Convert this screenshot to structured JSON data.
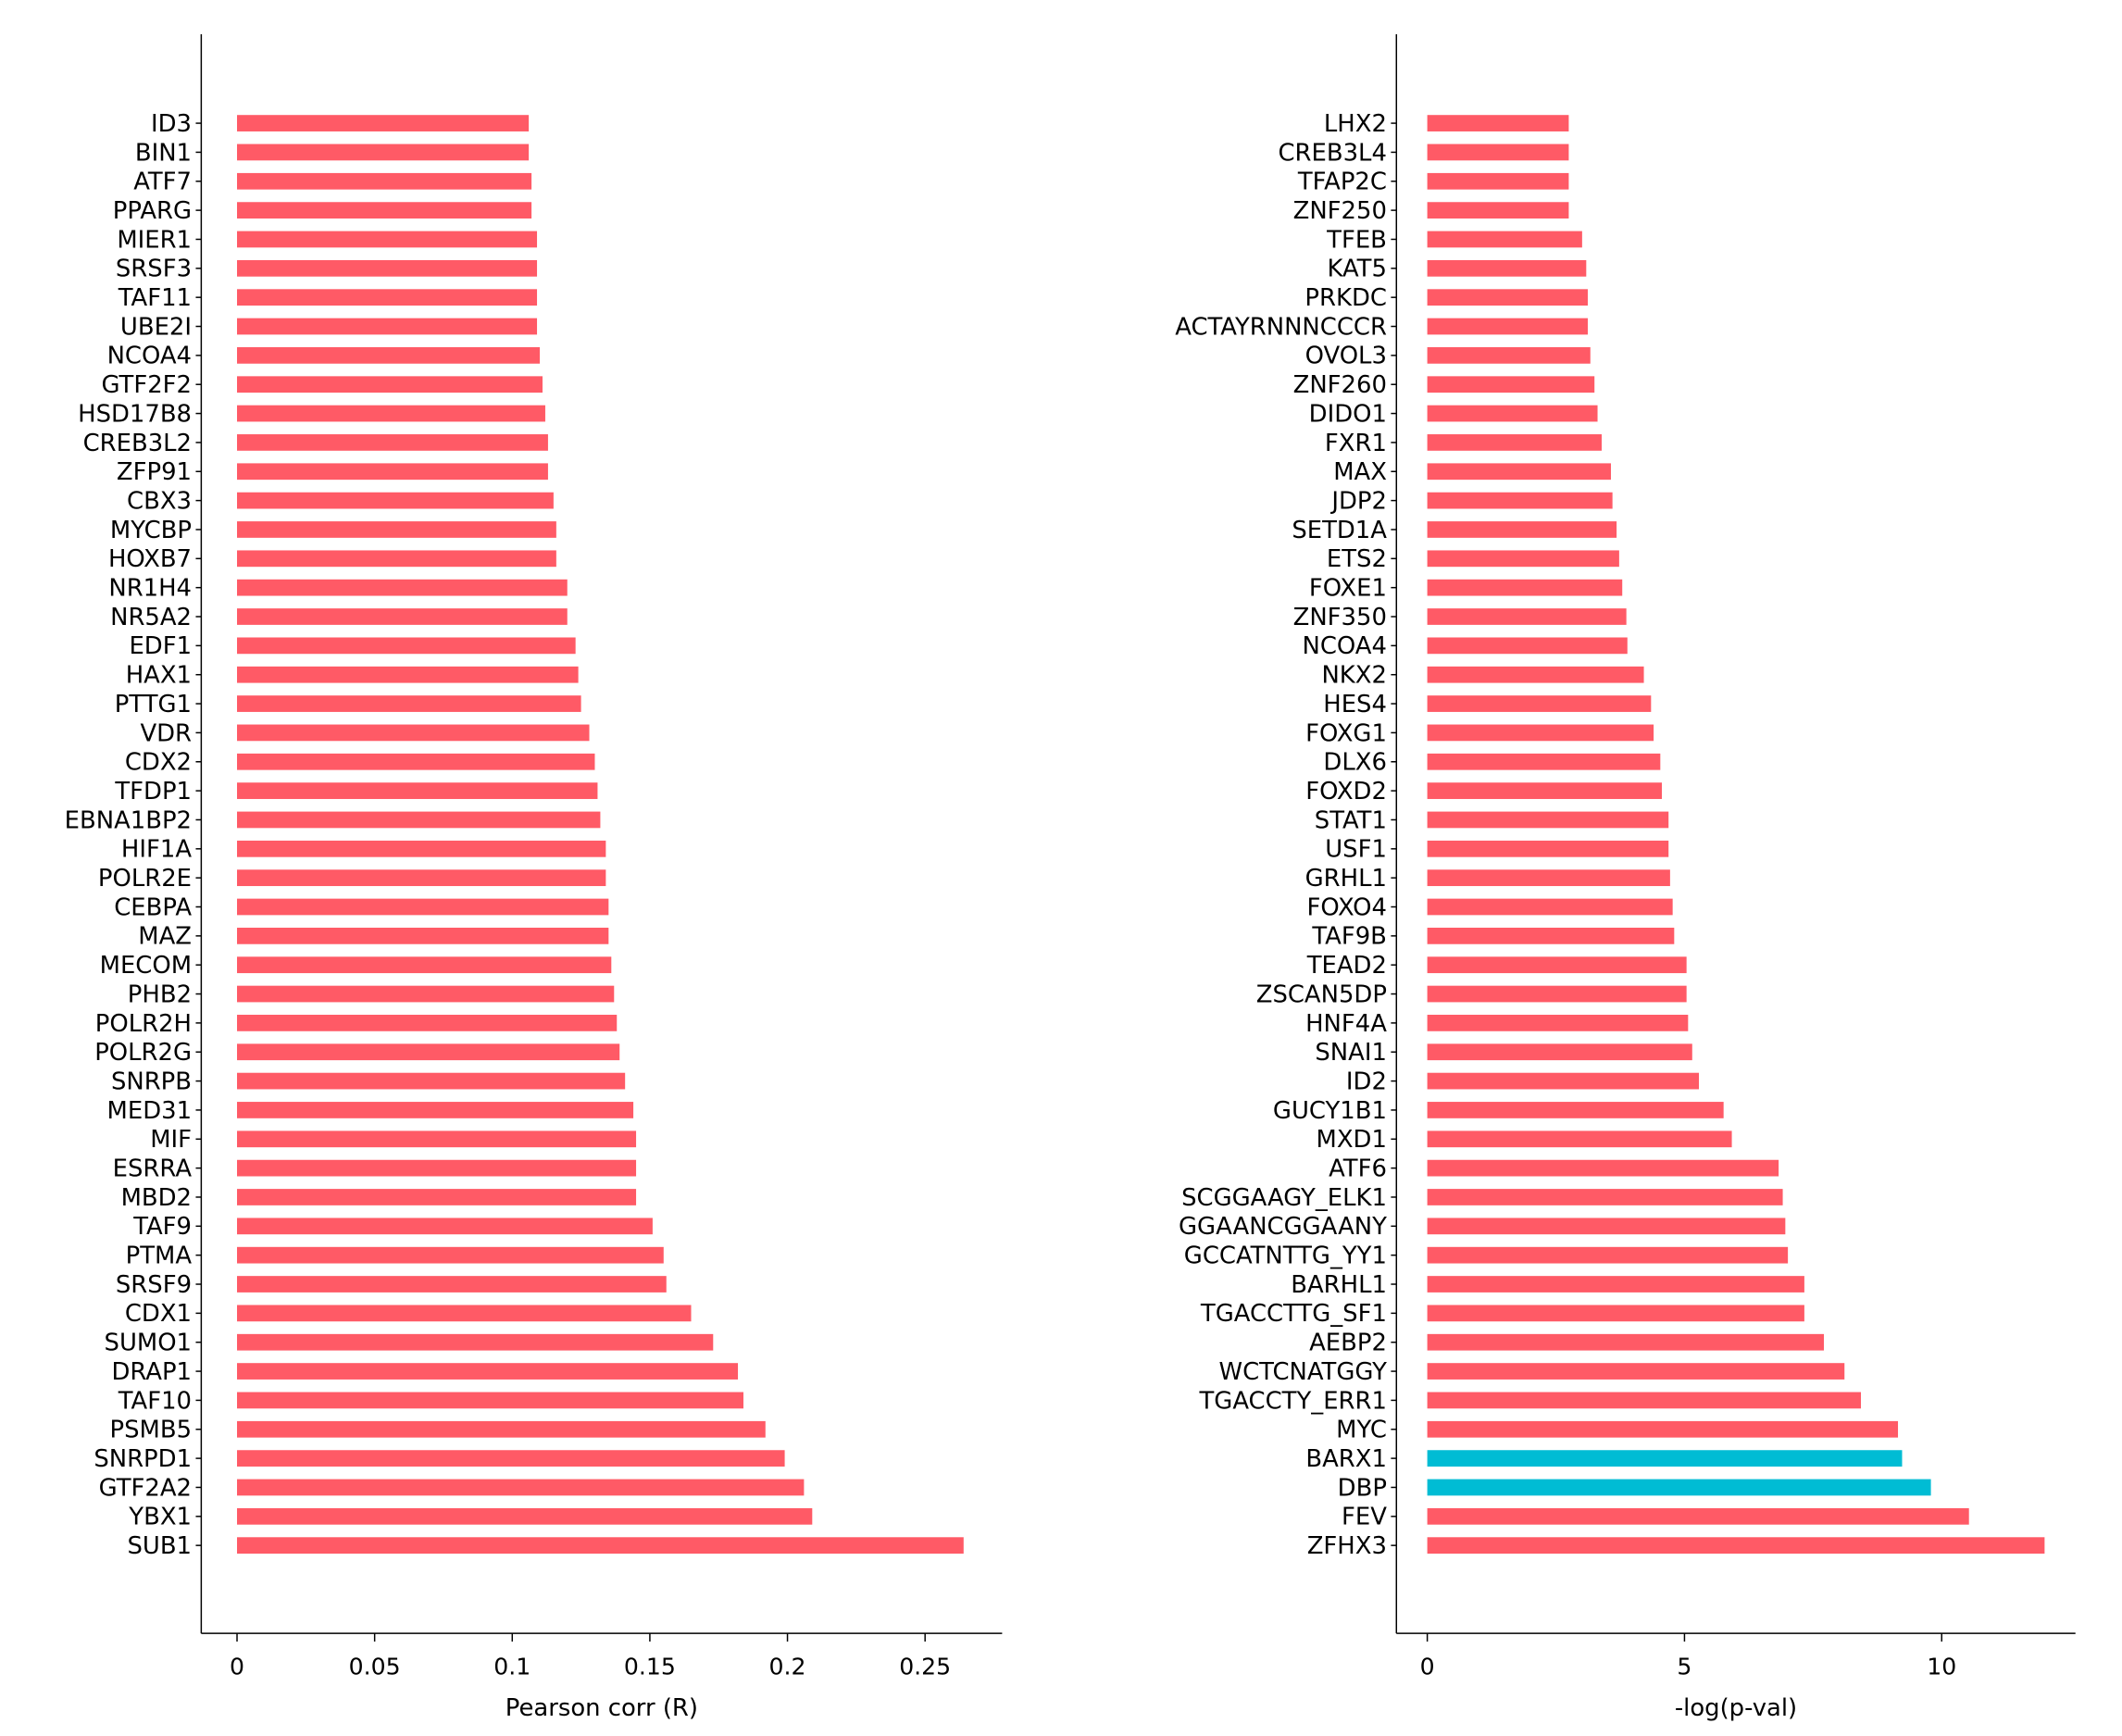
{
  "colors": {
    "default": "#FF5A66",
    "highlight": "#00BCD4",
    "axis": "#000000"
  },
  "chart_data": [
    {
      "type": "bar",
      "orientation": "horizontal",
      "xlabel": "Pearson corr (R)",
      "xlim": [
        -0.013,
        0.278
      ],
      "xticks": [
        0,
        0.05,
        0.1,
        0.15,
        0.2,
        0.25
      ],
      "xtick_labels": [
        "0",
        "0.05",
        "0.1",
        "0.15",
        "0.2",
        "0.25"
      ],
      "categories": [
        "ID3",
        "BIN1",
        "ATF7",
        "PPARG",
        "MIER1",
        "SRSF3",
        "TAF11",
        "UBE2I",
        "NCOA4",
        "GTF2F2",
        "HSD17B8",
        "CREB3L2",
        "ZFP91",
        "CBX3",
        "MYCBP",
        "HOXB7",
        "NR1H4",
        "NR5A2",
        "EDF1",
        "HAX1",
        "PTTG1",
        "VDR",
        "CDX2",
        "TFDP1",
        "EBNA1BP2",
        "HIF1A",
        "POLR2E",
        "CEBPA",
        "MAZ",
        "MECOM",
        "PHB2",
        "POLR2H",
        "POLR2G",
        "SNRPB",
        "MED31",
        "MIF",
        "ESRRA",
        "MBD2",
        "TAF9",
        "PTMA",
        "SRSF9",
        "CDX1",
        "SUMO1",
        "DRAP1",
        "TAF10",
        "PSMB5",
        "SNRPD1",
        "GTF2A2",
        "YBX1",
        "SUB1"
      ],
      "values": [
        0.106,
        0.106,
        0.107,
        0.107,
        0.109,
        0.109,
        0.109,
        0.109,
        0.11,
        0.111,
        0.112,
        0.113,
        0.113,
        0.115,
        0.116,
        0.116,
        0.12,
        0.12,
        0.123,
        0.124,
        0.125,
        0.128,
        0.13,
        0.131,
        0.132,
        0.134,
        0.134,
        0.135,
        0.135,
        0.136,
        0.137,
        0.138,
        0.139,
        0.141,
        0.144,
        0.145,
        0.145,
        0.145,
        0.151,
        0.155,
        0.156,
        0.165,
        0.173,
        0.182,
        0.184,
        0.192,
        0.199,
        0.206,
        0.209,
        0.264
      ],
      "highlight": []
    },
    {
      "type": "bar",
      "orientation": "horizontal",
      "xlabel": "-log(p-val)",
      "xlim": [
        -0.6,
        12.6
      ],
      "xticks": [
        0,
        5,
        10
      ],
      "xtick_labels": [
        "0",
        "5",
        "10"
      ],
      "categories": [
        "LHX2",
        "CREB3L4",
        "TFAP2C",
        "ZNF250",
        "TFEB",
        "KAT5",
        "PRKDC",
        "ACTAYRNNNCCCR",
        "OVOL3",
        "ZNF260",
        "DIDO1",
        "FXR1",
        "MAX",
        "JDP2",
        "SETD1A",
        "ETS2",
        "FOXE1",
        "ZNF350",
        "NCOA4",
        "NKX2",
        "HES4",
        "FOXG1",
        "DLX6",
        "FOXD2",
        "STAT1",
        "USF1",
        "GRHL1",
        "FOXO4",
        "TAF9B",
        "TEAD2",
        "ZSCAN5DP",
        "HNF4A",
        "SNAI1",
        "ID2",
        "GUCY1B1",
        "MXD1",
        "ATF6",
        "SCGGAAGY_ELK1",
        "GGAANCGGAANY",
        "GCCATNTTG_YY1",
        "BARHL1",
        "TGACCTTG_SF1",
        "AEBP2",
        "WCTCNATGGY",
        "TGACCTY_ERR1",
        "MYC",
        "BARX1",
        "DBP",
        "FEV",
        "ZFHX3"
      ],
      "values": [
        2.75,
        2.75,
        2.75,
        2.75,
        3.01,
        3.09,
        3.12,
        3.12,
        3.17,
        3.25,
        3.31,
        3.39,
        3.57,
        3.6,
        3.68,
        3.73,
        3.79,
        3.87,
        3.89,
        4.21,
        4.35,
        4.4,
        4.53,
        4.56,
        4.69,
        4.69,
        4.72,
        4.77,
        4.8,
        5.04,
        5.04,
        5.07,
        5.15,
        5.28,
        5.76,
        5.92,
        6.83,
        6.91,
        6.96,
        7.01,
        7.33,
        7.33,
        7.71,
        8.11,
        8.43,
        9.15,
        9.23,
        9.79,
        10.53,
        12.0
      ],
      "highlight": [
        "BARX1",
        "DBP"
      ]
    }
  ]
}
